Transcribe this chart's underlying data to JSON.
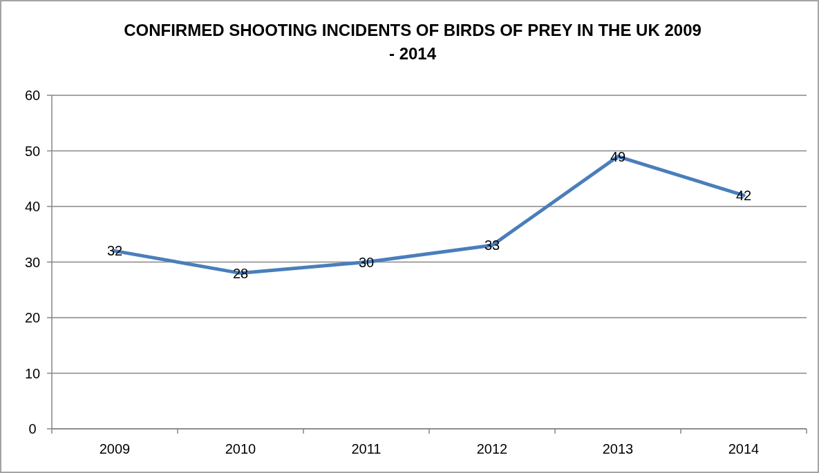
{
  "chart_data": {
    "type": "line",
    "title": "CONFIRMED SHOOTING INCIDENTS OF BIRDS OF PREY IN THE UK 2009 - 2014",
    "categories": [
      "2009",
      "2010",
      "2011",
      "2012",
      "2013",
      "2014"
    ],
    "series": [
      {
        "color": "#4a7ebb",
        "values": [
          32,
          28,
          30,
          33,
          49,
          42
        ]
      }
    ],
    "ylim": [
      0,
      60
    ],
    "yticks": [
      0,
      10,
      20,
      30,
      40,
      50,
      60
    ],
    "grid": "y",
    "data_labels": true,
    "marker": "none",
    "line_style": "solid"
  }
}
